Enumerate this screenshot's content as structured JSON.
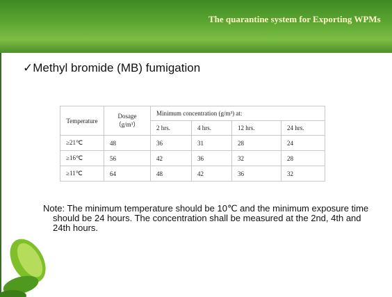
{
  "header": {
    "title": "The quarantine system for Exporting WPMs"
  },
  "heading": "✓Methyl bromide (MB) fumigation",
  "table": {
    "head": {
      "temperature": "Temperature",
      "dosage": "Dosage",
      "dosage_unit": "（g/m³）",
      "concentration": "Minimum concentration (g/m³) at:",
      "times": [
        "2 hrs.",
        "4 hrs.",
        "12 hrs.",
        "24 hrs."
      ]
    },
    "rows": [
      [
        "≥21℃",
        "48",
        "36",
        "31",
        "28",
        "24"
      ],
      [
        "≥16℃",
        "56",
        "42",
        "36",
        "32",
        "28"
      ],
      [
        "≥11℃",
        "64",
        "48",
        "42",
        "36",
        "32"
      ]
    ]
  },
  "note": "Note: The minimum temperature should be 10℃ and the minimum exposure time should be 24 hours. The concentration shall be measured at the 2nd, 4th and 24th hours."
}
